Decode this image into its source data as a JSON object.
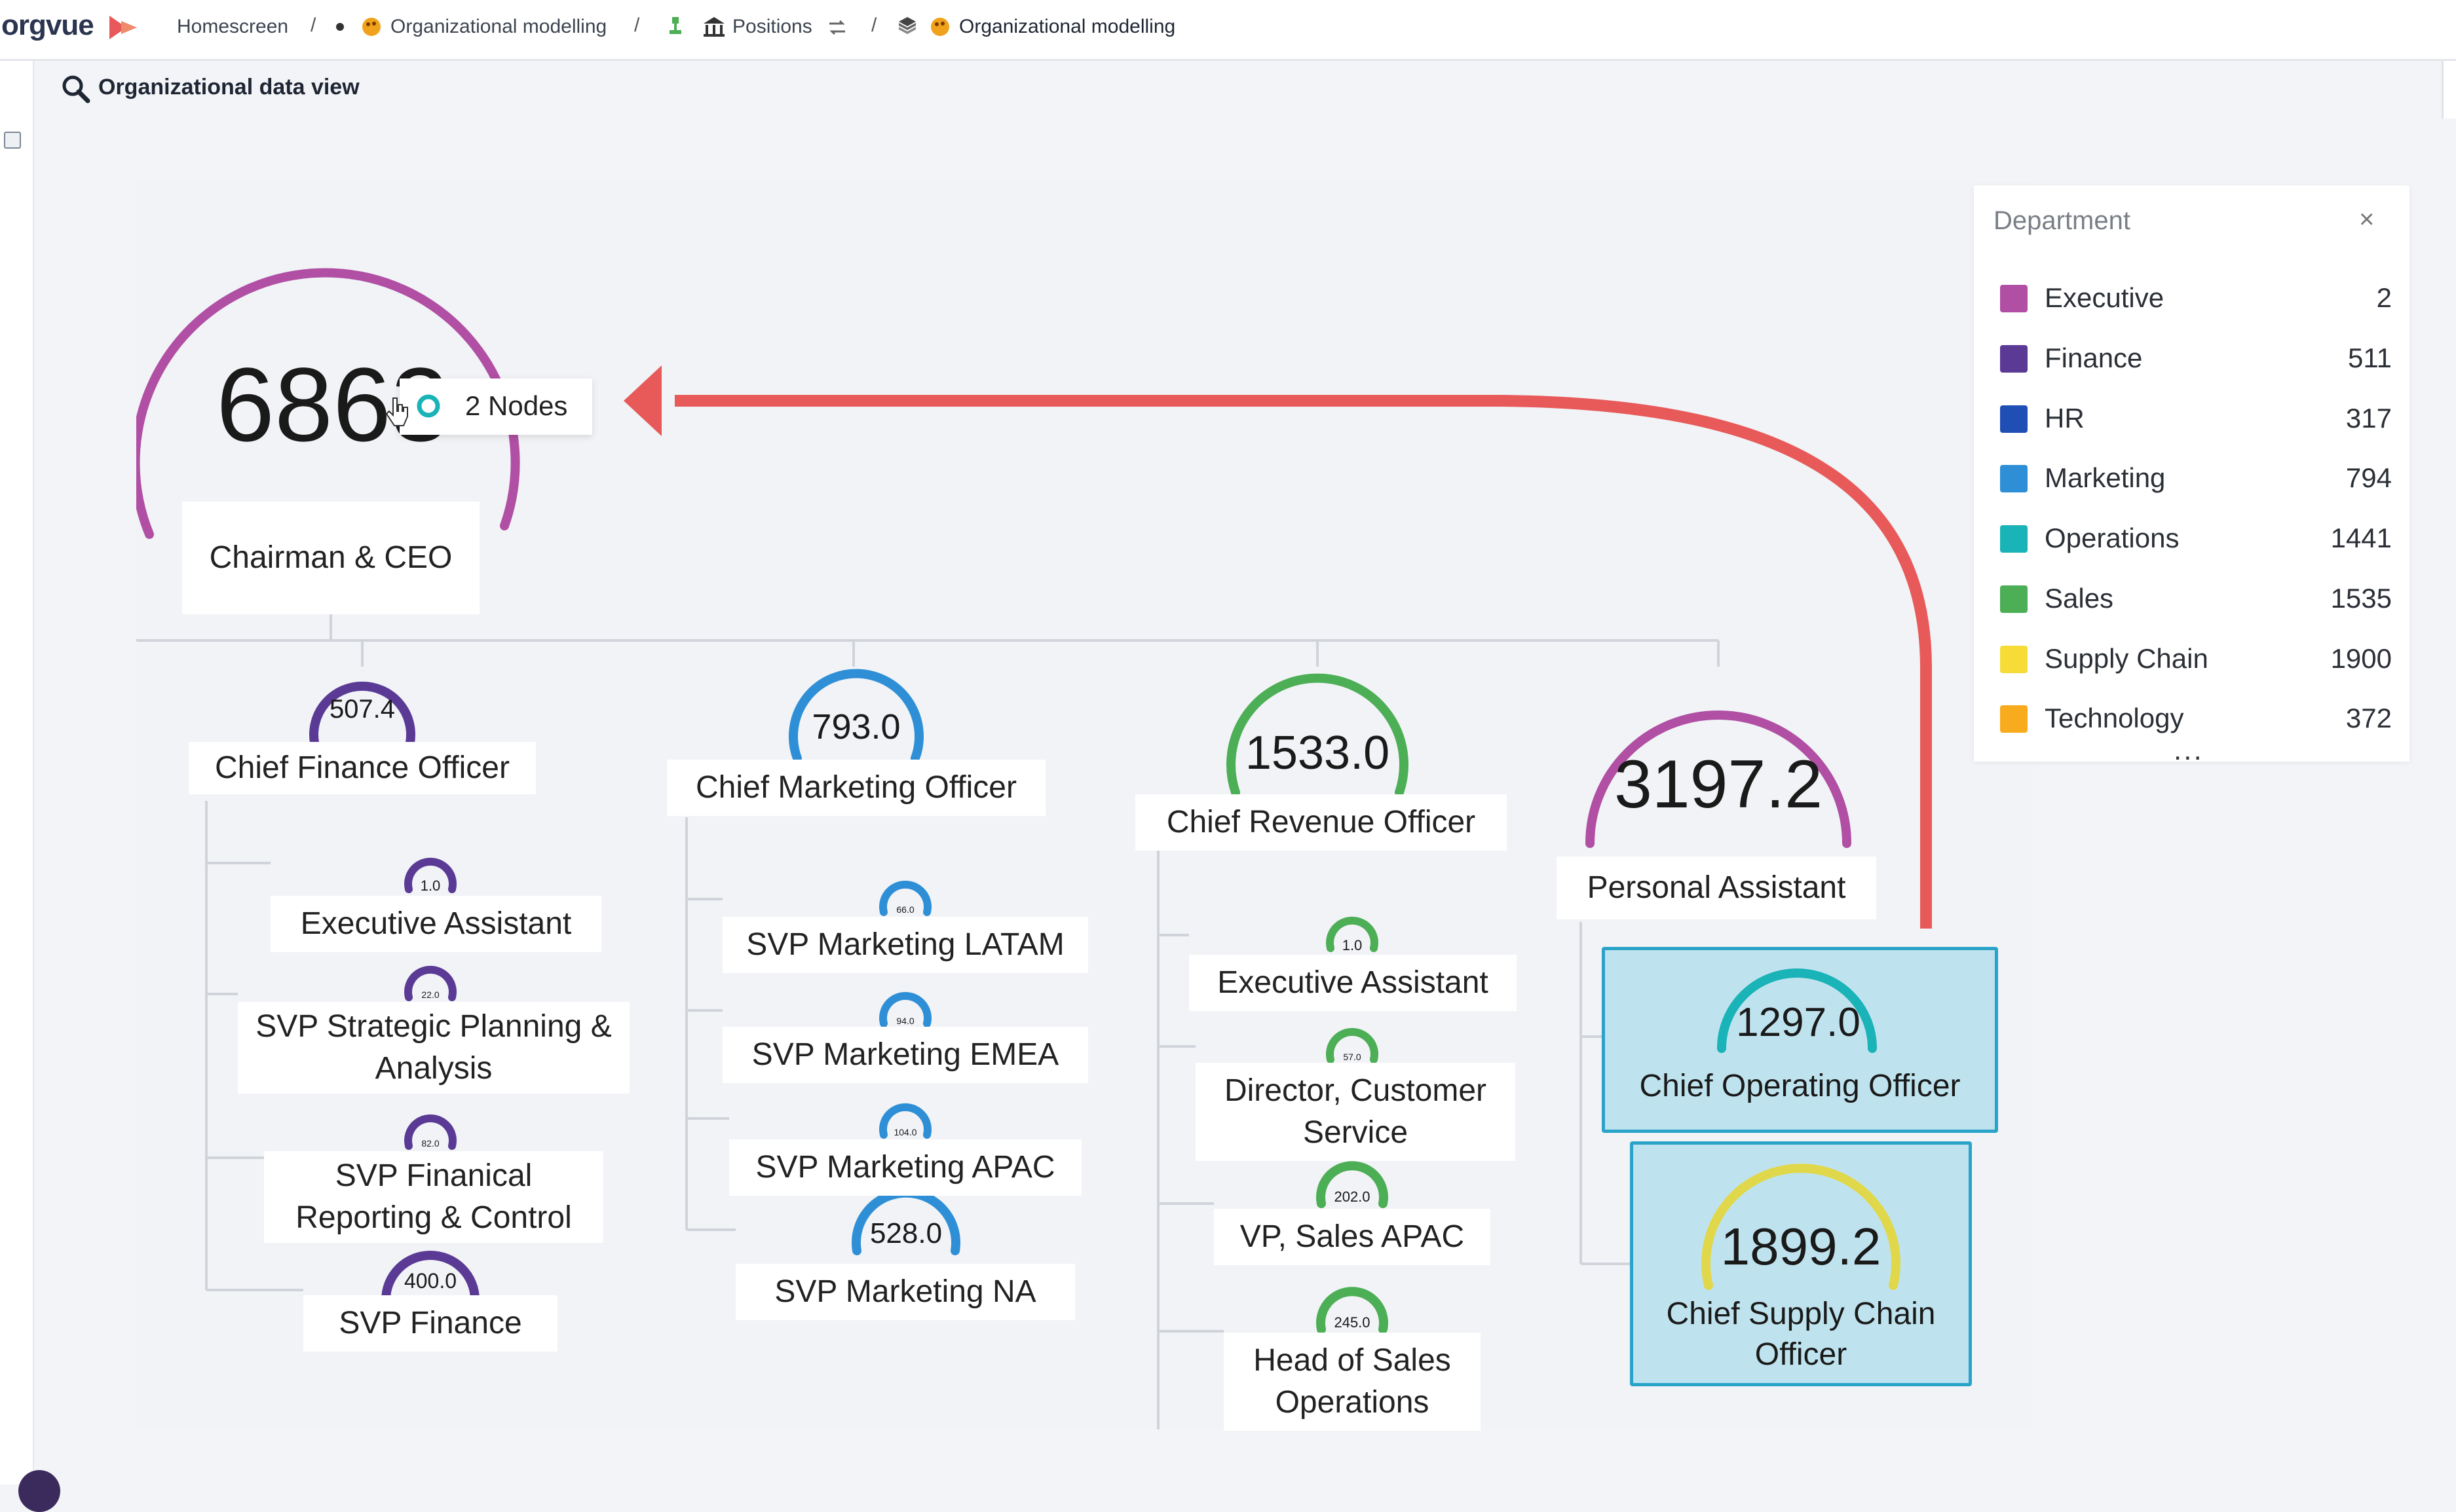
{
  "app": {
    "logo": "orgvue"
  },
  "breadcrumb": [
    {
      "label": "Homescreen"
    },
    {
      "label": "Organizational modelling"
    },
    {
      "label": "Positions"
    },
    {
      "label": "Organizational modelling"
    }
  ],
  "view": {
    "title": "Organizational data view"
  },
  "tooltip": {
    "label": "2 Nodes"
  },
  "legend": {
    "title": "Department",
    "close": "×",
    "more": "...",
    "items": [
      {
        "name": "Executive",
        "count": "2",
        "color": "#b04fa4"
      },
      {
        "name": "Finance",
        "count": "511",
        "color": "#5a3a95"
      },
      {
        "name": "HR",
        "count": "317",
        "color": "#1f4fb5"
      },
      {
        "name": "Marketing",
        "count": "794",
        "color": "#2f8fd6"
      },
      {
        "name": "Operations",
        "count": "1441",
        "color": "#19b3b8"
      },
      {
        "name": "Sales",
        "count": "1535",
        "color": "#4cae55"
      },
      {
        "name": "Supply Chain",
        "count": "1900",
        "color": "#f7dc38"
      },
      {
        "name": "Technology",
        "count": "372",
        "color": "#f8ab1d"
      }
    ]
  },
  "colors": {
    "executive": "#b04fa4",
    "finance": "#5a3a95",
    "marketing": "#2f8fd6",
    "operations": "#19b3b8",
    "sales": "#4cae55",
    "supply_chain": "#e0d84a",
    "annotation_arrow": "#e85a5a",
    "highlight_border": "#2aa3c9",
    "highlight_fill": "#bfe3ee"
  },
  "nodes": {
    "ceo": {
      "title": "Chairman & CEO",
      "value": "6863.0",
      "value_visible": "6863"
    },
    "cfo": {
      "title": "Chief Finance Officer",
      "value": "507.4"
    },
    "cmo": {
      "title": "Chief Marketing Officer",
      "value": "793.0"
    },
    "cro": {
      "title": "Chief Revenue Officer",
      "value": "1533.0"
    },
    "pa": {
      "title": "Personal Assistant",
      "value": "3197.2"
    },
    "coo": {
      "title": "Chief Operating Officer",
      "value": "1297.0"
    },
    "csco": {
      "title": "Chief Supply Chain Officer",
      "value": "1899.2"
    },
    "fin_ea": {
      "title": "Executive Assistant",
      "value": "1.0"
    },
    "fin_spa": {
      "title": "SVP Strategic Planning & Analysis",
      "value": "22.0"
    },
    "fin_frc": {
      "title": "SVP Finanical Reporting & Control",
      "value": "82.0"
    },
    "fin_svp": {
      "title": "SVP Finance",
      "value": "400.0"
    },
    "mkt_latam": {
      "title": "SVP Marketing LATAM",
      "value": "66.0"
    },
    "mkt_emea": {
      "title": "SVP Marketing EMEA",
      "value": "94.0"
    },
    "mkt_apac": {
      "title": "SVP Marketing APAC",
      "value": "104.0"
    },
    "mkt_na": {
      "title": "SVP Marketing NA",
      "value": "528.0"
    },
    "rev_ea": {
      "title": "Executive Assistant",
      "value": "1.0"
    },
    "rev_dcs": {
      "title": "Director, Customer Service",
      "value": "57.0"
    },
    "rev_vp": {
      "title": "VP, Sales APAC",
      "value": "202.0"
    },
    "rev_hso": {
      "title": "Head of Sales Operations",
      "value": "245.0"
    }
  }
}
